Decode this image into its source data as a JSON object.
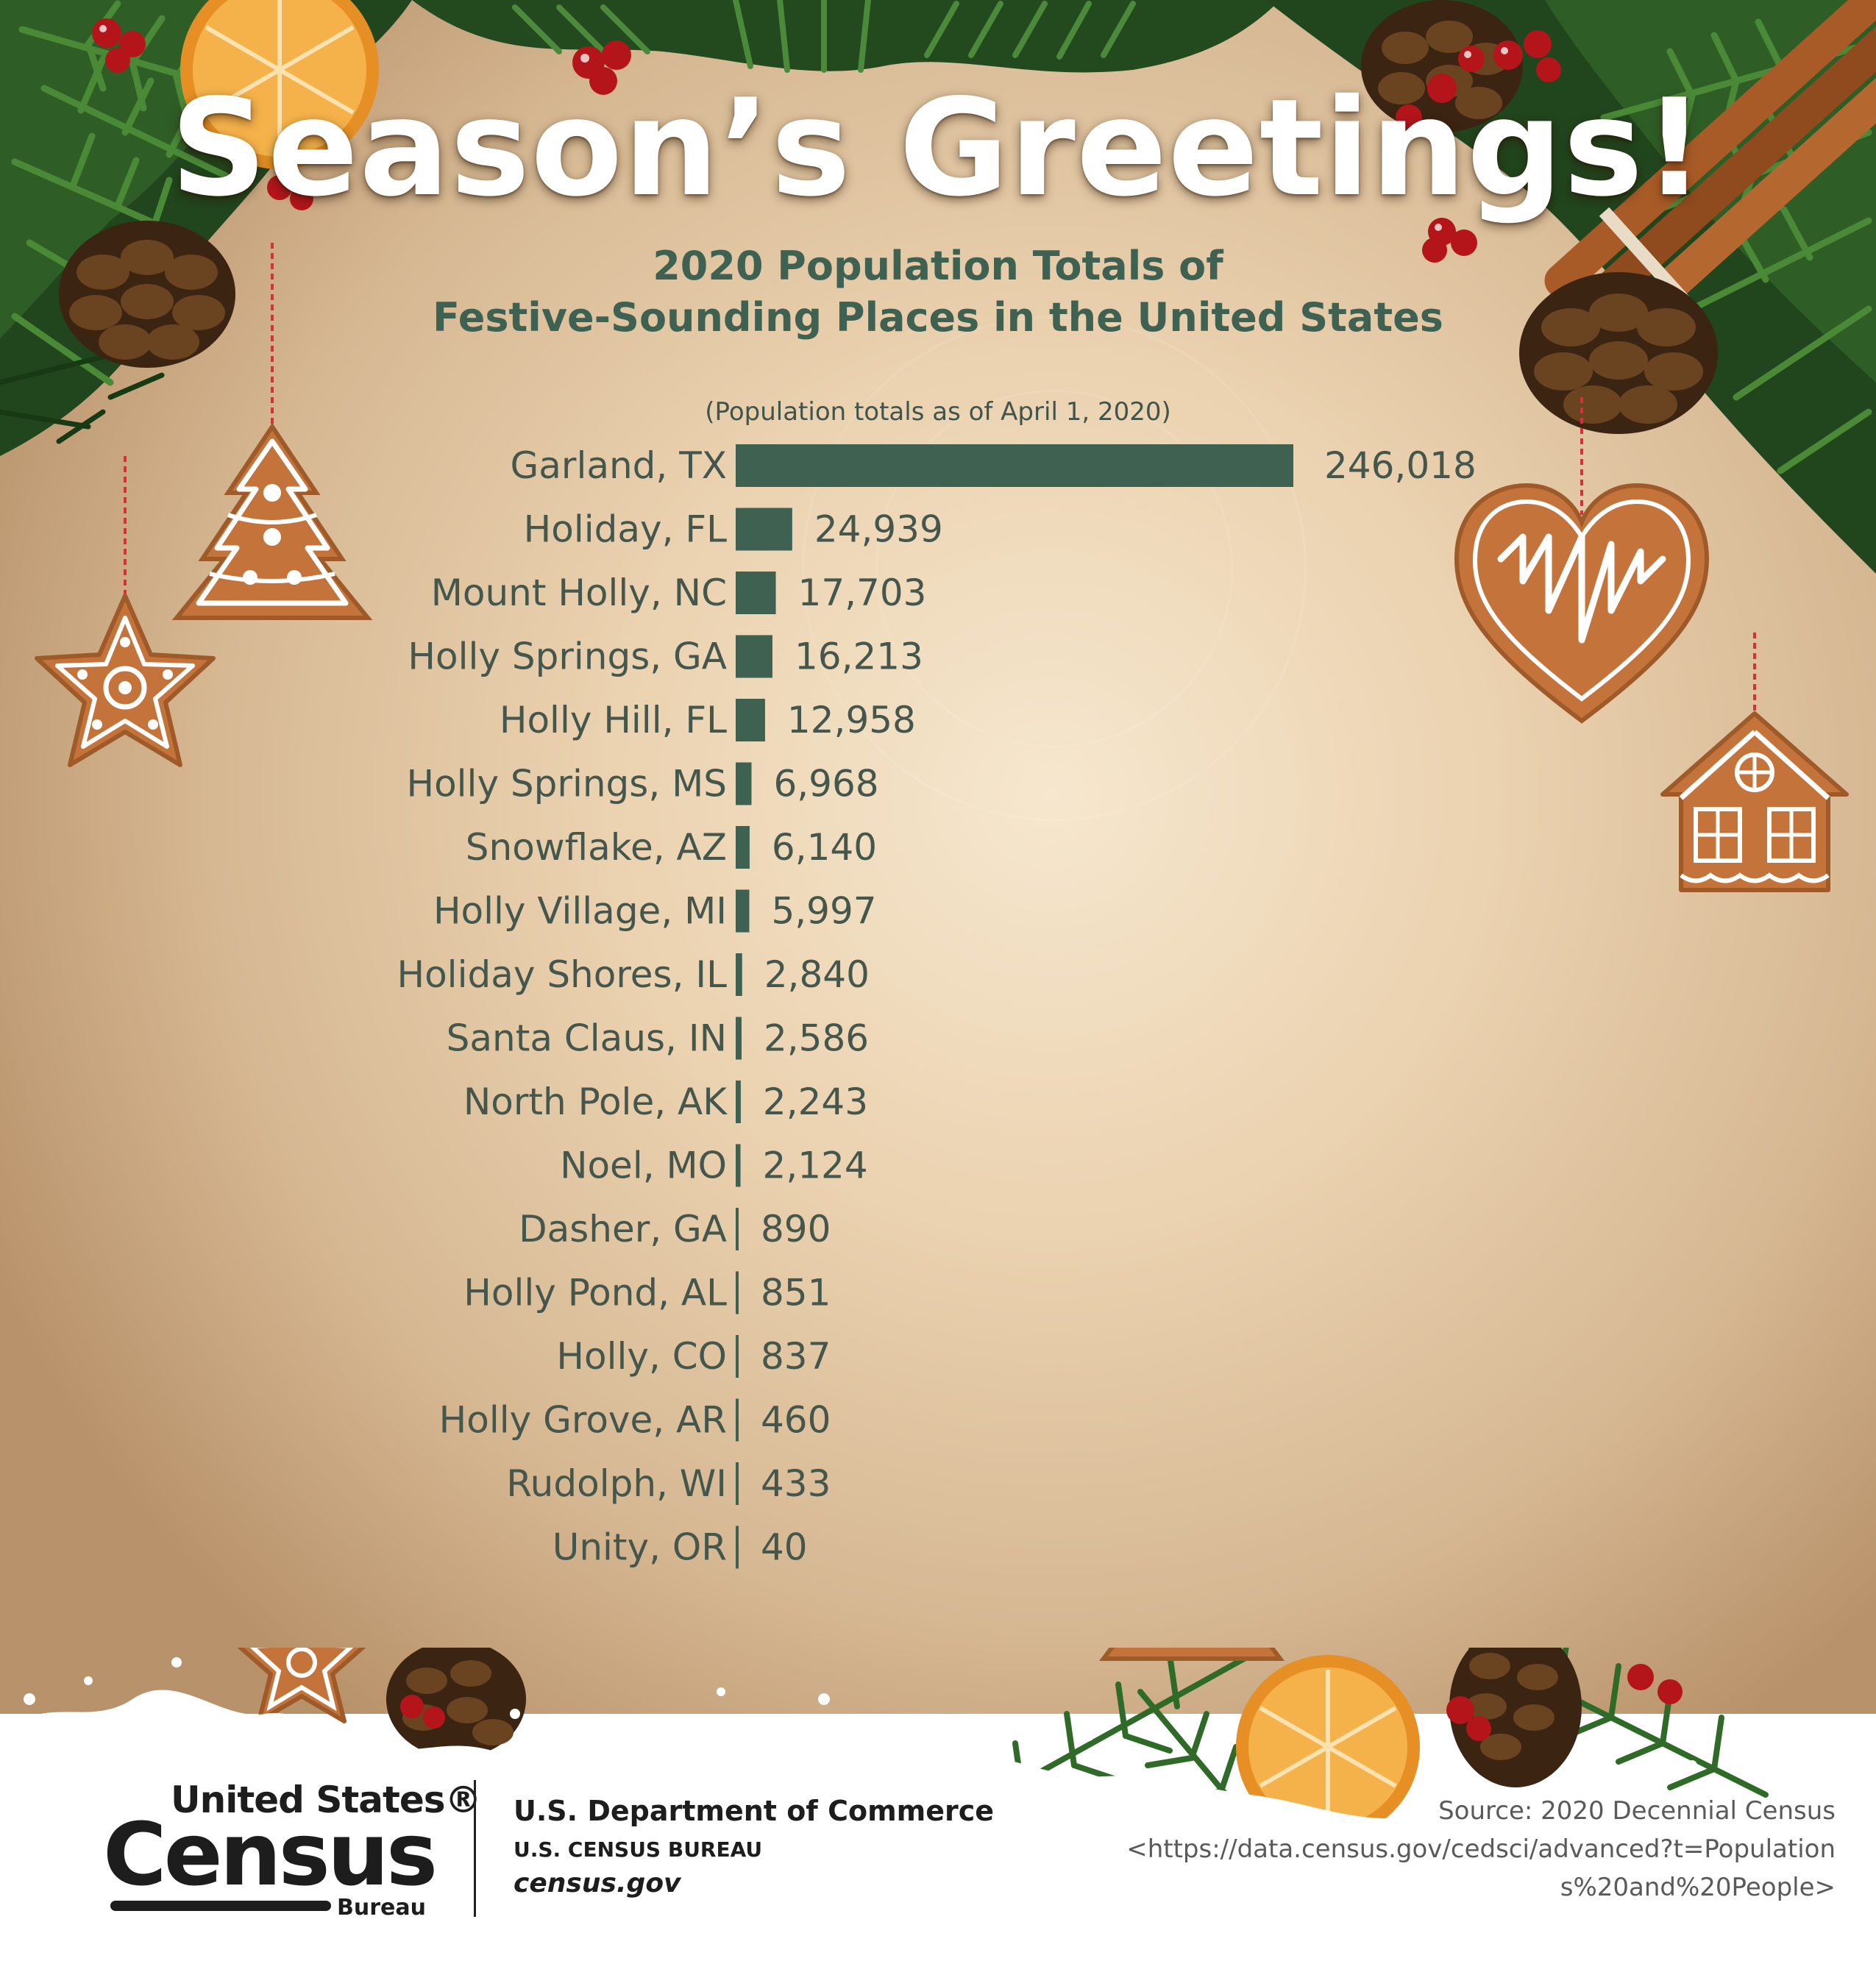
{
  "title": "Season’s Greetings!",
  "subtitle_line1": "2020 Population Totals of",
  "subtitle_line2": "Festive-Sounding Places in the United States",
  "note": "(Population totals as of April 1, 2020)",
  "chart_data": {
    "type": "bar",
    "orientation": "horizontal",
    "categories": [
      "Garland, TX",
      "Holiday, FL",
      "Mount Holly, NC",
      "Holly Springs, GA",
      "Holly Hill, FL",
      "Holly Springs, MS",
      "Snowflake, AZ",
      "Holly Village, MI",
      "Holiday Shores, IL",
      "Santa Claus, IN",
      "North Pole, AK",
      "Noel, MO",
      "Dasher, GA",
      "Holly Pond, AL",
      "Holly, CO",
      "Holly Grove, AR",
      "Rudolph, WI",
      "Unity, OR"
    ],
    "values": [
      246018,
      24939,
      17703,
      16213,
      12958,
      6968,
      6140,
      5997,
      2840,
      2586,
      2243,
      2124,
      890,
      851,
      837,
      460,
      433,
      40
    ],
    "value_labels": [
      "246,018",
      "24,939",
      "17,703",
      "16,213",
      "12,958",
      "6,968",
      "6,140",
      "5,997",
      "2,840",
      "2,586",
      "2,243",
      "2,124",
      "890",
      "851",
      "837",
      "460",
      "433",
      "40"
    ],
    "bar_color": "#3f6152",
    "grid": false,
    "legend": "none"
  },
  "footer": {
    "logo_line1": "United States®",
    "logo_line2": "Census",
    "logo_line3": "Bureau",
    "department": "U.S. Department of Commerce",
    "bureau": "U.S. CENSUS BUREAU",
    "website": "census.gov",
    "source_line1": "Source: 2020 Decennial Census",
    "source_line2": "<https://data.census.gov/cedsci/advanced?t=Population",
    "source_line3": "s%20and%20People>"
  },
  "decorations": {
    "icons": [
      "pine-branch-icon",
      "pinecone-icon",
      "berries-icon",
      "orange-slice-icon",
      "cinnamon-sticks-icon",
      "gingerbread-tree-icon",
      "gingerbread-star-icon",
      "gingerbread-heart-icon",
      "gingerbread-house-icon",
      "snow-icon"
    ],
    "colors": {
      "needle": "#1f4a1c",
      "needle_light": "#3f7a2f",
      "gingerbread": "#c4743a",
      "icing": "#ffffff",
      "berry": "#b3151b",
      "cinnamon": "#9c5526",
      "orange": "#f2a33a"
    }
  }
}
